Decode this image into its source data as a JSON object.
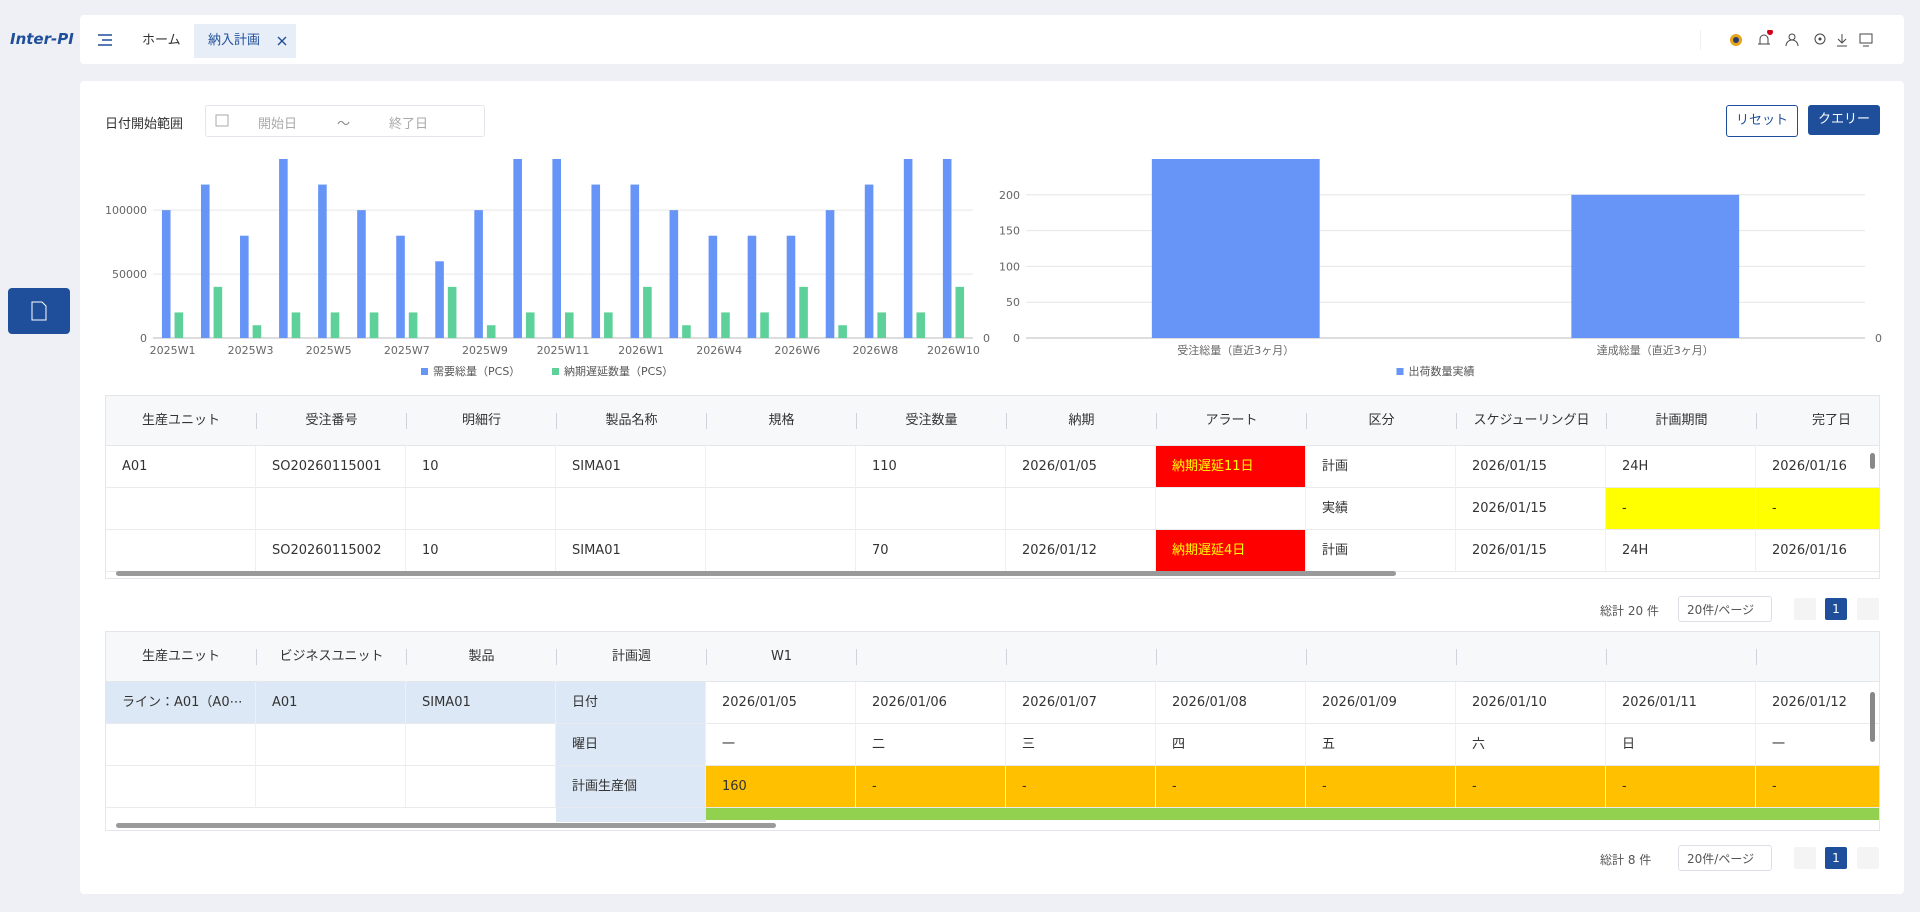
{
  "header": {
    "logo": "Inter-PI",
    "tabs": [
      "ホーム",
      "納入計画"
    ]
  },
  "filter": {
    "label": "日付開始範囲",
    "start_placeholder": "開始日",
    "separator": "～",
    "end_placeholder": "終了日",
    "reset": "リセット",
    "query": "クエリー"
  },
  "chart_data": [
    {
      "type": "bar",
      "categories": [
        "2025W1",
        null,
        "2025W3",
        null,
        "2025W5",
        null,
        "2025W7",
        null,
        "2025W9",
        null,
        "2025W11",
        null,
        "2026W1",
        null,
        "2026W4",
        null,
        "2026W6",
        null,
        "2026W8",
        null,
        "2026W10"
      ],
      "series": [
        {
          "name": "需要総量（PCS）",
          "color": "#6694f7",
          "values": [
            100000,
            120000,
            80000,
            140000,
            120000,
            100000,
            80000,
            60000,
            100000,
            140000,
            140000,
            120000,
            120000,
            100000,
            80000,
            80000,
            80000,
            100000,
            120000,
            140000,
            140000
          ]
        },
        {
          "name": "納期遅延数量（PCS）",
          "color": "#5ed19a",
          "values": [
            20000,
            40000,
            10000,
            20000,
            20000,
            20000,
            20000,
            40000,
            10000,
            20000,
            20000,
            20000,
            40000,
            10000,
            20000,
            20000,
            40000,
            10000,
            20000,
            20000,
            40000
          ]
        }
      ],
      "ylim": [
        0,
        140000
      ],
      "yticks": [
        0,
        50000,
        100000
      ],
      "y2lim": [
        0,
        1
      ],
      "y2ticks": [
        0
      ],
      "grid": true,
      "legend": "bottom"
    },
    {
      "type": "bar",
      "categories": [
        "受注総量（直近3ヶ月）",
        "達成総量（直近3ヶ月）"
      ],
      "series": [
        {
          "name": "出荷数量実績",
          "color": "#6694f7",
          "values": [
            250,
            200
          ]
        }
      ],
      "ylim": [
        0,
        250
      ],
      "yticks": [
        0,
        50,
        100,
        150,
        200
      ],
      "y2lim": [
        0,
        1
      ],
      "y2ticks": [
        0
      ],
      "grid": true,
      "legend": "bottom"
    }
  ],
  "table1": {
    "columns": [
      "生産ユニット",
      "受注番号",
      "明細行",
      "製品名称",
      "規格",
      "受注数量",
      "納期",
      "アラート",
      "区分",
      "スケジューリング日",
      "計画期間",
      "完了日"
    ],
    "rows": [
      [
        "A01",
        "SO20260115001",
        "10",
        "SIMA01",
        null,
        "110",
        "2026/01/05",
        "納期遅延11日",
        "計画",
        "2026/01/15",
        "24H",
        "2026/01/16"
      ],
      [
        null,
        null,
        null,
        null,
        null,
        null,
        null,
        null,
        "実績",
        "2026/01/15",
        "-",
        "-"
      ],
      [
        null,
        "SO20260115002",
        "10",
        "SIMA01",
        null,
        "70",
        "2026/01/12",
        "納期遅延4日",
        "計画",
        "2026/01/15",
        "24H",
        "2026/01/16"
      ]
    ]
  },
  "pagination1": {
    "total": "総計 20 件",
    "page_size": "20件/ページ",
    "page": "1"
  },
  "table2": {
    "columns": [
      "生産ユニット",
      "ビジネスユニット",
      "製品",
      "計画週",
      "W1",
      null,
      null,
      null,
      null,
      null,
      null,
      null
    ],
    "rows": [
      [
        "ライン：A01（A0⋯",
        "A01",
        "SIMA01",
        "日付",
        "2026/01/05",
        "2026/01/06",
        "2026/01/07",
        "2026/01/08",
        "2026/01/09",
        "2026/01/10",
        "2026/01/11",
        "2026/01/12"
      ],
      [
        null,
        null,
        null,
        "曜日",
        "一",
        "二",
        "三",
        "四",
        "五",
        "六",
        "日",
        "一"
      ],
      [
        null,
        null,
        null,
        "計画生産個",
        "160",
        "-",
        "-",
        "-",
        "-",
        "-",
        "-",
        "-"
      ]
    ]
  },
  "pagination2": {
    "total": "総計 8 件",
    "page_size": "20件/ページ",
    "page": "1"
  }
}
